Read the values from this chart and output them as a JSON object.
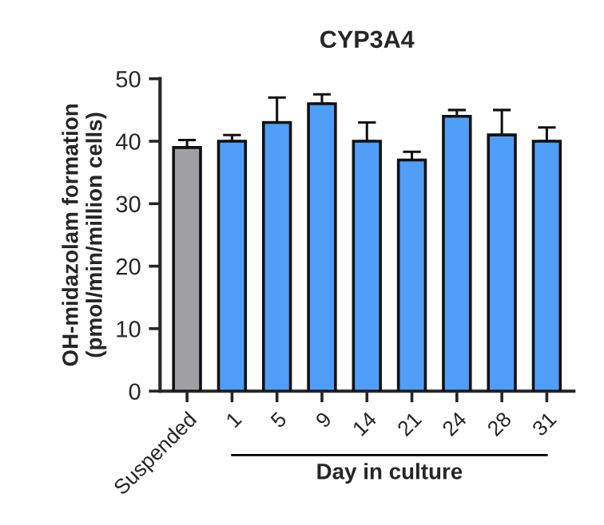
{
  "chart_data": {
    "type": "bar",
    "title": "CYP3A4",
    "xlabel": "Day in culture",
    "ylabel": "OH-midazolam formation\n(pmol/min/million cells)",
    "categories": [
      "Suspended",
      "1",
      "5",
      "9",
      "14",
      "21",
      "24",
      "28",
      "31"
    ],
    "values": [
      39,
      40,
      43,
      46,
      40,
      37,
      44,
      41,
      40
    ],
    "errors": [
      1.2,
      1,
      4,
      1.5,
      3,
      1.3,
      1,
      4,
      2.2
    ],
    "colors": [
      "#a0a0a4",
      "#519ef8",
      "#519ef8",
      "#519ef8",
      "#519ef8",
      "#519ef8",
      "#519ef8",
      "#519ef8",
      "#519ef8"
    ],
    "ylim": [
      0,
      50
    ],
    "yticks": [
      0,
      10,
      20,
      30,
      40,
      50
    ],
    "grid": false,
    "legend": false
  }
}
